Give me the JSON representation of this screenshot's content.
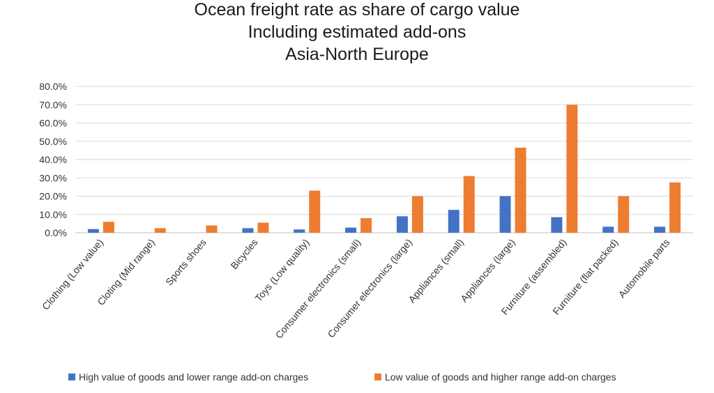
{
  "chart_data": {
    "type": "bar",
    "title": [
      "Ocean freight rate as share of cargo value",
      "Including estimated add-ons",
      "Asia-North Europe"
    ],
    "xlabel": "",
    "ylabel": "",
    "ylim": [
      0,
      80
    ],
    "yticks": [
      0,
      10,
      20,
      30,
      40,
      50,
      60,
      70,
      80
    ],
    "ytick_labels": [
      "0.0%",
      "10.0%",
      "20.0%",
      "30.0%",
      "40.0%",
      "50.0%",
      "60.0%",
      "70.0%",
      "80.0%"
    ],
    "grid": true,
    "legend_position": "bottom",
    "categories": [
      "Clothing (Low value)",
      "Cloting (Mid range)",
      "Sports shoes",
      "Bicycles",
      "Toys (Low quality)",
      "Consumer electronics (small)",
      "Consumer electronics (large)",
      "Appliances (small)",
      "Appliances (large)",
      "Furniture (assembled)",
      "Furniture (flat packed)",
      "Automobile parts"
    ],
    "series": [
      {
        "name": "High value of goods and lower range add-on charges",
        "color": "#4472c4",
        "values": [
          2.0,
          0,
          0,
          2.5,
          1.8,
          2.8,
          9.0,
          12.5,
          20.0,
          8.5,
          3.3,
          3.3
        ]
      },
      {
        "name": "Low value of goods and higher range add-on charges",
        "color": "#ed7d31",
        "values": [
          6.0,
          2.5,
          4.0,
          5.5,
          23.0,
          8.0,
          20.0,
          31.0,
          46.5,
          70.0,
          20.0,
          27.5
        ]
      }
    ]
  }
}
